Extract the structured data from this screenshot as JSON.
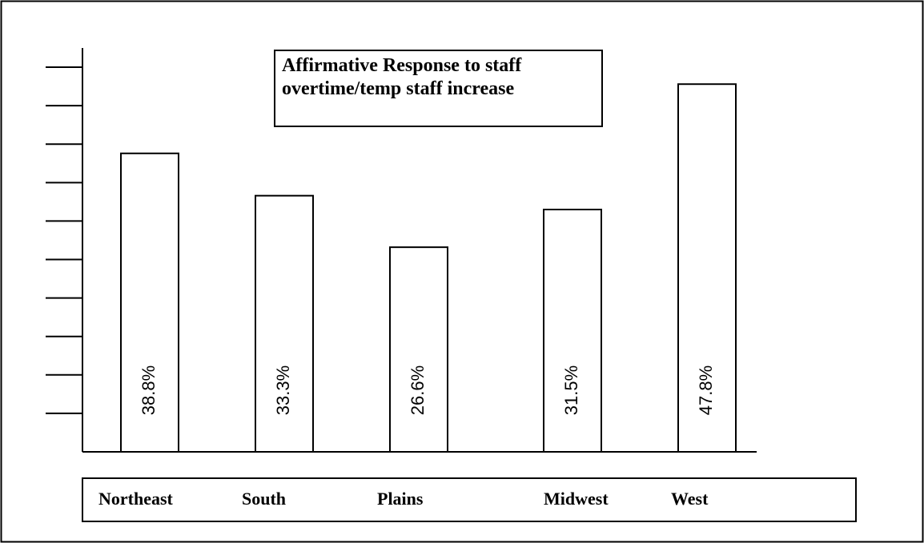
{
  "chart_data": {
    "type": "bar",
    "title": "Affirmative Response to staff overtime/temp staff increase",
    "categories": [
      "Northeast",
      "South",
      "Plains",
      "Midwest",
      "West"
    ],
    "values": [
      38.8,
      33.3,
      26.6,
      31.5,
      47.8
    ],
    "value_labels": [
      "38.8%",
      "33.3%",
      "26.6%",
      "31.5%",
      "47.8%"
    ],
    "color": "#ffffff",
    "ylim": [
      0,
      52.5
    ],
    "yticks": [
      5,
      10,
      15,
      20,
      25,
      30,
      35,
      40,
      45,
      50
    ]
  }
}
